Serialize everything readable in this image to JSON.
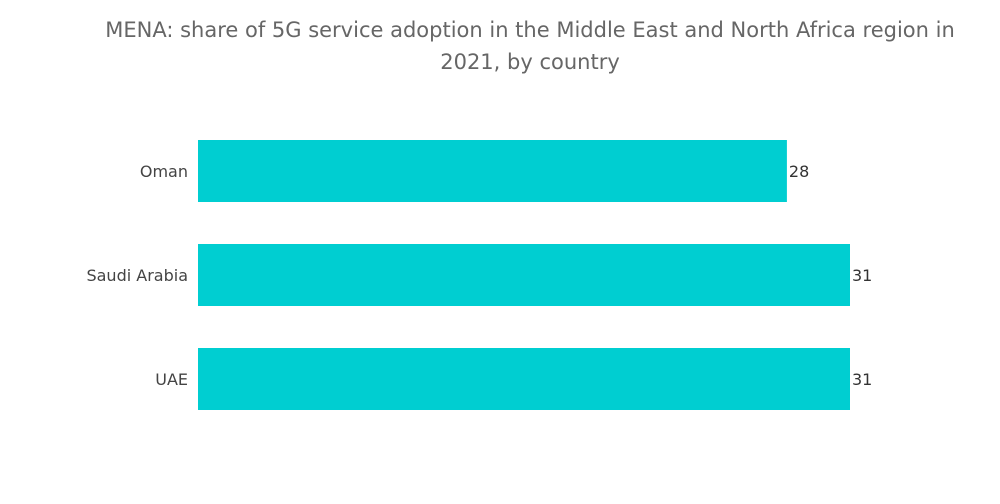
{
  "chart_data": {
    "type": "bar",
    "orientation": "horizontal",
    "title": "MENA: share of 5G service adoption in the Middle East and North Africa region in 2021, by country",
    "categories": [
      "Oman",
      "Saudi Arabia",
      "UAE"
    ],
    "values": [
      28,
      31,
      31
    ],
    "xlim": [
      0,
      31
    ],
    "bar_color": "#00CED1",
    "grid": false,
    "legend": "none"
  }
}
